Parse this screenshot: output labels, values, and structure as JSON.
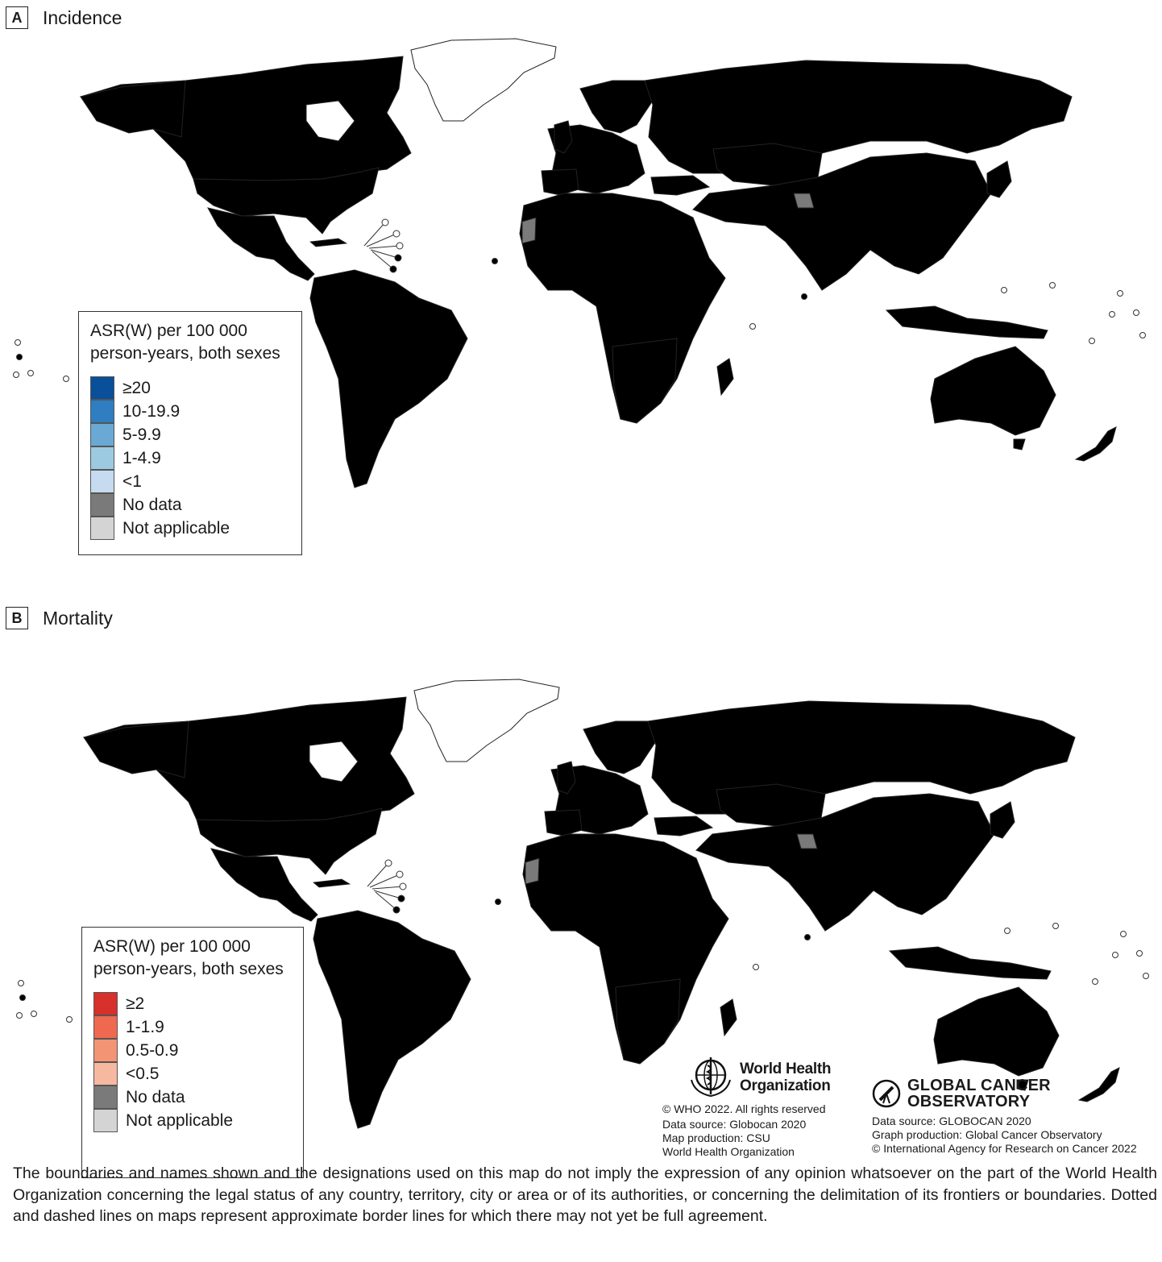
{
  "colors": {
    "incidence": [
      "#0a4f9a",
      "#2e7ec1",
      "#6aa9d4",
      "#9ccae0",
      "#c6dbef"
    ],
    "mortality": [
      "#d8302a",
      "#ef6850",
      "#f39474",
      "#f7b8a0"
    ],
    "no_data": "#7a7a7a",
    "not_applicable": "#d4d4d4",
    "greenland": "#ffffff"
  },
  "panel_a": {
    "letter": "A",
    "title": "Incidence",
    "legend": {
      "title_line1": "ASR(W) per 100 000",
      "title_line2": "person-years, both sexes",
      "items": [
        {
          "label": "≥20",
          "color": "#0a4f9a"
        },
        {
          "label": "10-19.9",
          "color": "#2e7ec1"
        },
        {
          "label": "5-9.9",
          "color": "#6aa9d4"
        },
        {
          "label": "1-4.9",
          "color": "#9ccae0"
        },
        {
          "label": "<1",
          "color": "#c6dbef"
        },
        {
          "label": "No data",
          "color": "#7a7a7a"
        },
        {
          "label": "Not applicable",
          "color": "#d4d4d4"
        }
      ]
    }
  },
  "panel_b": {
    "letter": "B",
    "title": "Mortality",
    "legend": {
      "title_line1": "ASR(W) per 100 000",
      "title_line2": "person-years, both sexes",
      "items": [
        {
          "label": "≥2",
          "color": "#d8302a"
        },
        {
          "label": "1-1.9",
          "color": "#ef6850"
        },
        {
          "label": "0.5-0.9",
          "color": "#f39474"
        },
        {
          "label": "<0.5",
          "color": "#f7b8a0"
        },
        {
          "label": "No data",
          "color": "#7a7a7a"
        },
        {
          "label": "Not applicable",
          "color": "#d4d4d4"
        }
      ]
    }
  },
  "who": {
    "name_line1": "World Health",
    "name_line2": "Organization",
    "copyright": "© WHO 2022. All rights reserved",
    "data_source": "Data source: Globocan 2020",
    "map_production": "Map production: CSU",
    "org": "World Health Organization"
  },
  "gco": {
    "name_line1": "GLOBAL CANCER",
    "name_line2": "OBSERVATORY",
    "data_source": "Data source: GLOBOCAN 2020",
    "graph_production": "Graph production: Global Cancer Observatory",
    "copyright": "© International Agency for Research on Cancer 2022"
  },
  "disclaimer": "The boundaries and names shown and the designations used on this map do not imply the expression of any opinion whatsoever on the part of the World Health Organization concerning the legal status of any country, territory, city or area or of its authorities, or concerning the delimitation of its frontiers or boundaries. Dotted and dashed lines on maps represent approximate border lines for which there may not yet be full agreement."
}
